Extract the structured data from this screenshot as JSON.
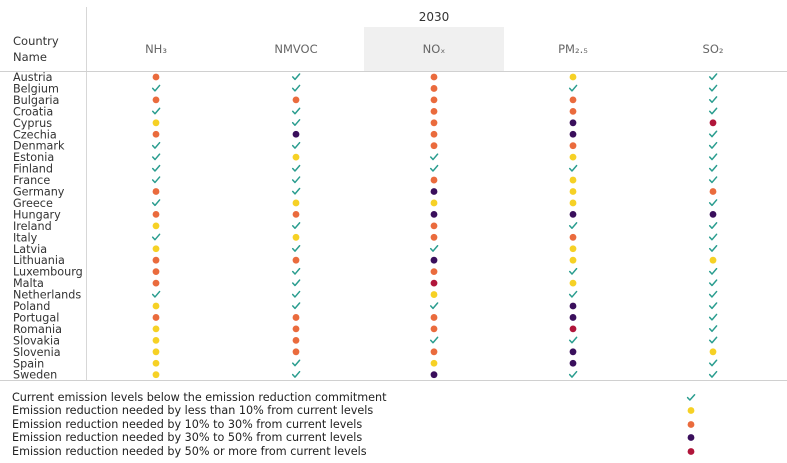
{
  "chart_data": {
    "type": "table",
    "title": "2030",
    "row_header_lines": [
      "Country",
      "Name"
    ],
    "columns": [
      {
        "key": "NH3",
        "label": "NH₃"
      },
      {
        "key": "NMVOC",
        "label": "NMVOC"
      },
      {
        "key": "NOx",
        "label": "NOₓ"
      },
      {
        "key": "PM25",
        "label": "PM₂.₅"
      },
      {
        "key": "SO2",
        "label": "SO₂"
      }
    ],
    "highlighted_column": "NOx",
    "categories": [
      {
        "code": 0,
        "label": "Current emission levels below the emission reduction commitment",
        "symbol": "check",
        "color": "#2a9d8f"
      },
      {
        "code": 1,
        "label": "Emission reduction needed by less than 10% from current levels",
        "symbol": "dot",
        "color": "#f6d125"
      },
      {
        "code": 2,
        "label": "Emission reduction needed by 10% to 30% from current levels",
        "symbol": "dot",
        "color": "#ea6b3d"
      },
      {
        "code": 3,
        "label": "Emission reduction needed by 30% to 50% from current levels",
        "symbol": "dot",
        "color": "#3a0f5c"
      },
      {
        "code": 4,
        "label": "Emission reduction needed by 50% or more from current levels",
        "symbol": "dot",
        "color": "#b0153a"
      }
    ],
    "rows": [
      {
        "country": "Austria",
        "values": [
          2,
          0,
          2,
          1,
          0
        ]
      },
      {
        "country": "Belgium",
        "values": [
          0,
          0,
          2,
          0,
          0
        ]
      },
      {
        "country": "Bulgaria",
        "values": [
          2,
          2,
          2,
          2,
          0
        ]
      },
      {
        "country": "Croatia",
        "values": [
          0,
          0,
          2,
          2,
          0
        ]
      },
      {
        "country": "Cyprus",
        "values": [
          1,
          0,
          2,
          3,
          4
        ]
      },
      {
        "country": "Czechia",
        "values": [
          2,
          3,
          2,
          3,
          0
        ]
      },
      {
        "country": "Denmark",
        "values": [
          0,
          0,
          2,
          2,
          0
        ]
      },
      {
        "country": "Estonia",
        "values": [
          0,
          1,
          0,
          1,
          0
        ]
      },
      {
        "country": "Finland",
        "values": [
          0,
          0,
          0,
          0,
          0
        ]
      },
      {
        "country": "France",
        "values": [
          0,
          0,
          2,
          1,
          0
        ]
      },
      {
        "country": "Germany",
        "values": [
          2,
          0,
          3,
          1,
          2
        ]
      },
      {
        "country": "Greece",
        "values": [
          0,
          1,
          1,
          1,
          0
        ]
      },
      {
        "country": "Hungary",
        "values": [
          2,
          2,
          3,
          3,
          3
        ]
      },
      {
        "country": "Ireland",
        "values": [
          1,
          0,
          2,
          0,
          0
        ]
      },
      {
        "country": "Italy",
        "values": [
          0,
          1,
          2,
          2,
          0
        ]
      },
      {
        "country": "Latvia",
        "values": [
          1,
          0,
          0,
          1,
          0
        ]
      },
      {
        "country": "Lithuania",
        "values": [
          2,
          2,
          3,
          1,
          1
        ]
      },
      {
        "country": "Luxembourg",
        "values": [
          2,
          0,
          2,
          0,
          0
        ]
      },
      {
        "country": "Malta",
        "values": [
          2,
          0,
          4,
          1,
          0
        ]
      },
      {
        "country": "Netherlands",
        "values": [
          0,
          0,
          1,
          0,
          0
        ]
      },
      {
        "country": "Poland",
        "values": [
          1,
          0,
          0,
          3,
          0
        ]
      },
      {
        "country": "Portugal",
        "values": [
          2,
          2,
          2,
          3,
          0
        ]
      },
      {
        "country": "Romania",
        "values": [
          1,
          2,
          2,
          4,
          0
        ]
      },
      {
        "country": "Slovakia",
        "values": [
          1,
          2,
          0,
          0,
          0
        ]
      },
      {
        "country": "Slovenia",
        "values": [
          1,
          2,
          2,
          3,
          1
        ]
      },
      {
        "country": "Spain",
        "values": [
          1,
          0,
          1,
          3,
          0
        ]
      },
      {
        "country": "Sweden",
        "values": [
          1,
          0,
          3,
          0,
          0
        ]
      }
    ]
  }
}
